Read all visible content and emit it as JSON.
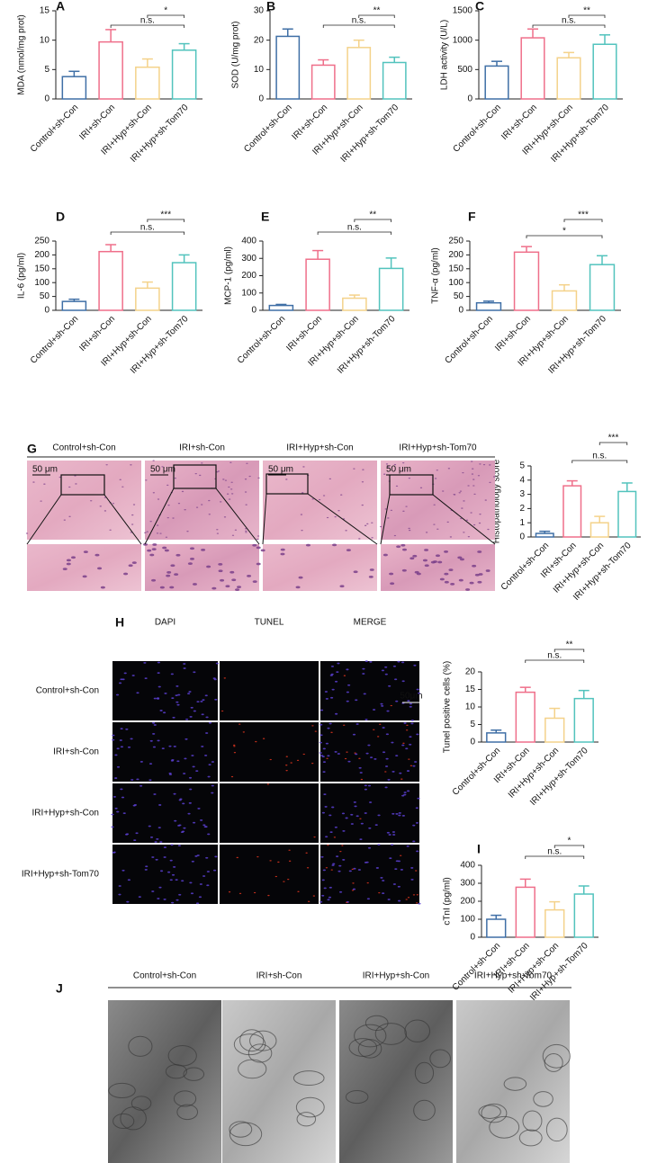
{
  "chart_data": [
    {
      "type": "bar",
      "panel": "A",
      "ylabel": "MDA (nmol/mg prot)",
      "categories": [
        "Control+sh-Con",
        "IRI+sh-Con",
        "IRI+Hyp+sh-Con",
        "IRI+Hyp+sh-Tom70"
      ],
      "values": [
        3.8,
        9.7,
        5.4,
        8.3
      ],
      "errors": [
        0.9,
        2.1,
        1.4,
        1.1
      ],
      "colors": [
        "#3f6fa6",
        "#ef6f8a",
        "#f4d28a",
        "#52c3bd"
      ],
      "ylim": [
        0,
        15
      ],
      "yticks": [
        0,
        5,
        10,
        15
      ],
      "comparisons": [
        {
          "pair": [
            1,
            3
          ],
          "label": "n.s."
        },
        {
          "pair": [
            2,
            3
          ],
          "label": "*"
        }
      ]
    },
    {
      "type": "bar",
      "panel": "B",
      "ylabel": "SOD (U/mg prot)",
      "categories": [
        "Control+sh-Con",
        "IRI+sh-Con",
        "IRI+Hyp+sh-Con",
        "IRI+Hyp+sh-Tom70"
      ],
      "values": [
        21.3,
        11.5,
        17.5,
        12.4
      ],
      "errors": [
        2.5,
        1.8,
        2.5,
        1.8
      ],
      "colors": [
        "#3f6fa6",
        "#ef6f8a",
        "#f4d28a",
        "#52c3bd"
      ],
      "ylim": [
        0,
        30
      ],
      "yticks": [
        0,
        10,
        20,
        30
      ],
      "comparisons": [
        {
          "pair": [
            1,
            3
          ],
          "label": "n.s."
        },
        {
          "pair": [
            2,
            3
          ],
          "label": "**"
        }
      ]
    },
    {
      "type": "bar",
      "panel": "C",
      "ylabel": "LDH activity (U/L)",
      "categories": [
        "Control+sh-Con",
        "IRI+sh-Con",
        "IRI+Hyp+sh-Con",
        "IRI+Hyp+sh-Tom70"
      ],
      "values": [
        560,
        1040,
        700,
        930
      ],
      "errors": [
        80,
        150,
        90,
        160
      ],
      "colors": [
        "#3f6fa6",
        "#ef6f8a",
        "#f4d28a",
        "#52c3bd"
      ],
      "ylim": [
        0,
        1500
      ],
      "yticks": [
        0,
        500,
        1000,
        1500
      ],
      "comparisons": [
        {
          "pair": [
            1,
            3
          ],
          "label": "n.s."
        },
        {
          "pair": [
            2,
            3
          ],
          "label": "**"
        }
      ]
    },
    {
      "type": "bar",
      "panel": "D",
      "ylabel": "IL-6 (pg/ml)",
      "categories": [
        "Control+sh-Con",
        "IRI+sh-Con",
        "IRI+Hyp+sh-Con",
        "IRI+Hyp+sh-Tom70"
      ],
      "values": [
        32,
        212,
        80,
        172
      ],
      "errors": [
        8,
        25,
        22,
        28
      ],
      "colors": [
        "#3f6fa6",
        "#ef6f8a",
        "#f4d28a",
        "#52c3bd"
      ],
      "ylim": [
        0,
        250
      ],
      "yticks": [
        0,
        50,
        100,
        150,
        200,
        250
      ],
      "comparisons": [
        {
          "pair": [
            1,
            3
          ],
          "label": "n.s."
        },
        {
          "pair": [
            2,
            3
          ],
          "label": "***"
        }
      ]
    },
    {
      "type": "bar",
      "panel": "E",
      "ylabel": "MCP-1 (pg/ml)",
      "categories": [
        "Control+sh-Con",
        "IRI+sh-Con",
        "IRI+Hyp+sh-Con",
        "IRI+Hyp+sh-Tom70"
      ],
      "values": [
        28,
        295,
        70,
        242
      ],
      "errors": [
        6,
        50,
        18,
        60
      ],
      "colors": [
        "#3f6fa6",
        "#ef6f8a",
        "#f4d28a",
        "#52c3bd"
      ],
      "ylim": [
        0,
        400
      ],
      "yticks": [
        0,
        100,
        200,
        300,
        400
      ],
      "comparisons": [
        {
          "pair": [
            1,
            3
          ],
          "label": "n.s."
        },
        {
          "pair": [
            2,
            3
          ],
          "label": "**"
        }
      ]
    },
    {
      "type": "bar",
      "panel": "F",
      "ylabel": "TNF-α (pg/ml)",
      "categories": [
        "Control+sh-Con",
        "IRI+sh-Con",
        "IRI+Hyp+sh-Con",
        "IRI+Hyp+sh-Tom70"
      ],
      "values": [
        27,
        210,
        70,
        165
      ],
      "errors": [
        6,
        20,
        22,
        32
      ],
      "colors": [
        "#3f6fa6",
        "#ef6f8a",
        "#f4d28a",
        "#52c3bd"
      ],
      "ylim": [
        0,
        250
      ],
      "yticks": [
        0,
        50,
        100,
        150,
        200,
        250
      ],
      "comparisons": [
        {
          "pair": [
            1,
            3
          ],
          "label": "*"
        },
        {
          "pair": [
            2,
            3
          ],
          "label": "***"
        }
      ]
    },
    {
      "type": "bar",
      "ylabel": "Histopathology score",
      "categories": [
        "Control+sh-Con",
        "IRI+sh-Con",
        "IRI+Hyp+sh-Con",
        "IRI+Hyp+sh-Tom70"
      ],
      "values": [
        0.25,
        3.6,
        1.0,
        3.2
      ],
      "errors": [
        0.15,
        0.35,
        0.45,
        0.6
      ],
      "colors": [
        "#3f6fa6",
        "#ef6f8a",
        "#f4d28a",
        "#52c3bd"
      ],
      "ylim": [
        0,
        5
      ],
      "yticks": [
        0,
        1,
        2,
        3,
        4,
        5
      ],
      "comparisons": [
        {
          "pair": [
            1,
            3
          ],
          "label": "n.s."
        },
        {
          "pair": [
            2,
            3
          ],
          "label": "***"
        }
      ]
    },
    {
      "type": "bar",
      "ylabel": "Tunel positive cells (%)",
      "categories": [
        "Control+sh-Con",
        "IRI+sh-Con",
        "IRI+Hyp+sh-Con",
        "IRI+Hyp+sh-Tom70"
      ],
      "values": [
        2.6,
        14.2,
        6.8,
        12.4
      ],
      "errors": [
        0.8,
        1.4,
        2.8,
        2.3
      ],
      "colors": [
        "#3f6fa6",
        "#ef6f8a",
        "#f4d28a",
        "#52c3bd"
      ],
      "ylim": [
        0,
        20
      ],
      "yticks": [
        0,
        5,
        10,
        15,
        20
      ],
      "comparisons": [
        {
          "pair": [
            1,
            3
          ],
          "label": "n.s."
        },
        {
          "pair": [
            2,
            3
          ],
          "label": "**"
        }
      ]
    },
    {
      "type": "bar",
      "panel": "I",
      "ylabel": "cTnI (pg/ml)",
      "categories": [
        "Control+sh-Con",
        "IRI+sh-Con",
        "IRI+Hyp+sh-Con",
        "IRI+Hyp+sh-Tom70"
      ],
      "values": [
        100,
        278,
        152,
        240
      ],
      "errors": [
        22,
        45,
        45,
        45
      ],
      "colors": [
        "#3f6fa6",
        "#ef6f8a",
        "#f4d28a",
        "#52c3bd"
      ],
      "ylim": [
        0,
        400
      ],
      "yticks": [
        0,
        100,
        200,
        300,
        400
      ],
      "comparisons": [
        {
          "pair": [
            1,
            3
          ],
          "label": "n.s."
        },
        {
          "pair": [
            2,
            3
          ],
          "label": "*"
        }
      ]
    }
  ],
  "images": {
    "G": {
      "panel": "G",
      "columns": [
        "Control+sh-Con",
        "IRI+sh-Con",
        "IRI+Hyp+sh-Con",
        "IRI+Hyp+sh-Tom70"
      ],
      "scale": "50 μm"
    },
    "H": {
      "panel": "H",
      "columns": [
        "DAPI",
        "TUNEL",
        "MERGE"
      ],
      "rows": [
        "Control+sh-Con",
        "IRI+sh-Con",
        "IRI+Hyp+sh-Con",
        "IRI+Hyp+sh-Tom70"
      ],
      "scale": "50μm"
    },
    "J": {
      "panel": "J",
      "columns": [
        "Control+sh-Con",
        "IRI+sh-Con",
        "IRI+Hyp+sh-Con",
        "IRI+Hyp+sh-Tom70"
      ]
    }
  }
}
